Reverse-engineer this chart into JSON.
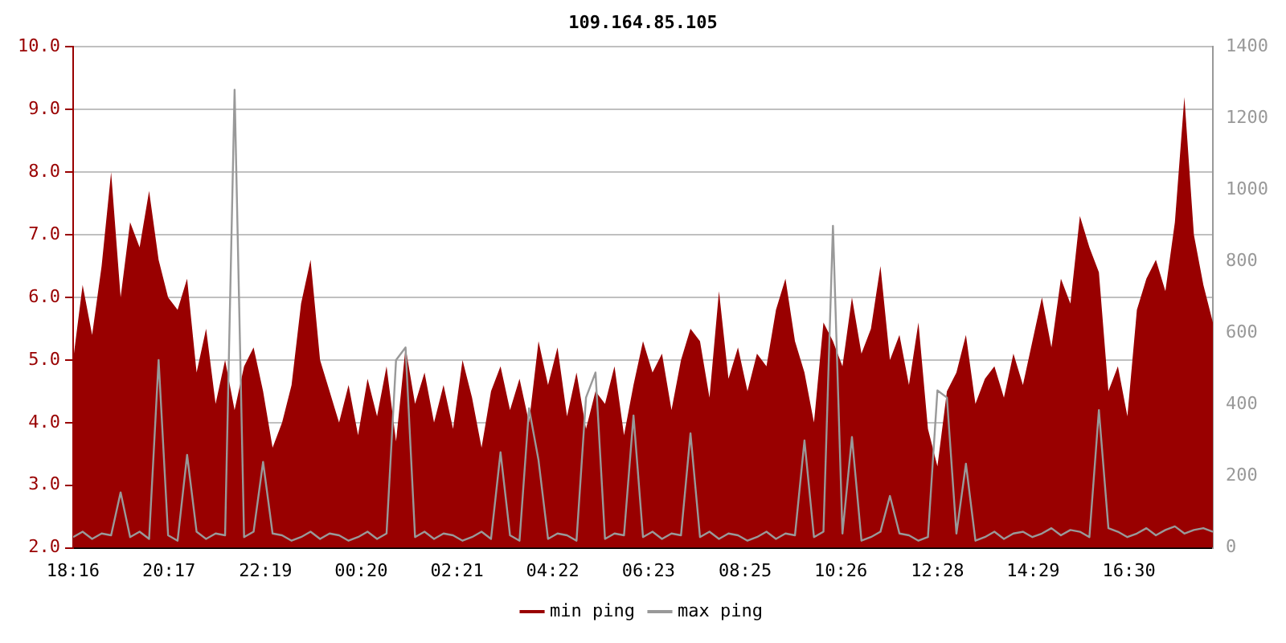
{
  "chart_data": {
    "type": "area",
    "title": "109.164.85.105",
    "x": [
      "--01-01T18:16",
      "--01-01T18:28",
      "--01-01T18:40",
      "--01-01T18:52",
      "--01-01T19:04",
      "--01-01T19:16",
      "--01-01T19:28",
      "--01-01T19:40",
      "--01-01T19:52",
      "--01-01T20:04",
      "--01-01T20:16",
      "--01-01T20:28",
      "--01-01T20:40",
      "--01-01T20:52",
      "--01-01T21:04",
      "--01-01T21:16",
      "--01-01T21:28",
      "--01-01T21:40",
      "--01-01T21:52",
      "--01-01T22:04",
      "--01-01T22:16",
      "--01-01T22:28",
      "--01-01T22:40",
      "--01-01T22:52",
      "--01-01T23:04",
      "--01-01T23:16",
      "--01-01T23:28",
      "--01-01T23:40",
      "--01-01T23:52",
      "--01-02T00:04",
      "--01-02T00:16",
      "--01-02T00:28",
      "--01-02T00:40",
      "--01-02T00:52",
      "--01-02T01:04",
      "--01-02T01:16",
      "--01-02T01:28",
      "--01-02T01:40",
      "--01-02T01:52",
      "--01-02T02:04",
      "--01-02T02:16",
      "--01-02T02:28",
      "--01-02T02:40",
      "--01-02T02:52",
      "--01-02T03:04",
      "--01-02T03:16",
      "--01-02T03:28",
      "--01-02T03:40",
      "--01-02T03:52",
      "--01-02T04:04",
      "--01-02T04:16",
      "--01-02T04:28",
      "--01-02T04:40",
      "--01-02T04:52",
      "--01-02T05:04",
      "--01-02T05:16",
      "--01-02T05:28",
      "--01-02T05:40",
      "--01-02T05:52",
      "--01-02T06:04",
      "--01-02T06:16",
      "--01-02T06:28",
      "--01-02T06:40",
      "--01-02T06:52",
      "--01-02T07:04",
      "--01-02T07:16",
      "--01-02T07:28",
      "--01-02T07:40",
      "--01-02T07:52",
      "--01-02T08:04",
      "--01-02T08:16",
      "--01-02T08:28",
      "--01-02T08:40",
      "--01-02T08:52",
      "--01-02T09:04",
      "--01-02T09:16",
      "--01-02T09:28",
      "--01-02T09:40",
      "--01-02T09:52",
      "--01-02T10:04",
      "--01-02T10:16",
      "--01-02T10:28",
      "--01-02T10:40",
      "--01-02T10:52",
      "--01-02T11:04",
      "--01-02T11:16",
      "--01-02T11:28",
      "--01-02T11:40",
      "--01-02T11:52",
      "--01-02T12:04",
      "--01-02T12:16",
      "--01-02T12:28",
      "--01-02T12:40",
      "--01-02T12:52",
      "--01-02T13:04",
      "--01-02T13:16",
      "--01-02T13:28",
      "--01-02T13:40",
      "--01-02T13:52",
      "--01-02T14:04",
      "--01-02T14:16",
      "--01-02T14:28",
      "--01-02T14:40",
      "--01-02T14:52",
      "--01-02T15:04",
      "--01-02T15:16",
      "--01-02T15:28",
      "--01-02T15:40",
      "--01-02T15:52",
      "--01-02T16:04",
      "--01-02T16:16",
      "--01-02T16:28",
      "--01-02T16:40",
      "--01-02T16:52",
      "--01-02T17:04",
      "--01-02T17:16",
      "--01-02T17:28",
      "--01-02T17:40",
      "--01-02T17:52",
      "--01-02T18:04",
      "--01-02T18:16"
    ],
    "series": [
      {
        "name": "min ping",
        "type": "area",
        "color": "#990000",
        "values": [
          5.0,
          6.2,
          5.4,
          6.5,
          8.0,
          6.0,
          7.2,
          6.8,
          7.7,
          6.6,
          6.0,
          5.8,
          6.3,
          4.8,
          5.5,
          4.3,
          5.0,
          4.2,
          4.9,
          5.2,
          4.5,
          3.6,
          4.0,
          4.6,
          5.9,
          6.6,
          5.0,
          4.5,
          4.0,
          4.6,
          3.8,
          4.7,
          4.1,
          4.9,
          3.7,
          5.2,
          4.3,
          4.8,
          4.0,
          4.6,
          3.9,
          5.0,
          4.4,
          3.6,
          4.5,
          4.9,
          4.2,
          4.7,
          4.0,
          5.3,
          4.6,
          5.2,
          4.1,
          4.8,
          3.9,
          4.5,
          4.3,
          4.9,
          3.8,
          4.6,
          5.3,
          4.8,
          5.1,
          4.2,
          5.0,
          5.5,
          5.3,
          4.4,
          6.1,
          4.7,
          5.2,
          4.5,
          5.1,
          4.9,
          5.8,
          6.3,
          5.3,
          4.8,
          4.0,
          5.6,
          5.3,
          4.9,
          6.0,
          5.1,
          5.5,
          6.5,
          5.0,
          5.4,
          4.6,
          5.6,
          3.9,
          3.3,
          4.5,
          4.8,
          5.4,
          4.3,
          4.7,
          4.9,
          4.4,
          5.1,
          4.6,
          5.3,
          6.0,
          5.2,
          6.3,
          5.9,
          7.3,
          6.8,
          6.4,
          4.5,
          4.9,
          4.1,
          5.8,
          6.3,
          6.6,
          6.1,
          7.2,
          9.2,
          7.0,
          6.2,
          5.6
        ]
      },
      {
        "name": "max ping",
        "type": "line",
        "axis": "y2",
        "color": "#999999",
        "values": [
          30,
          45,
          25,
          40,
          35,
          155,
          30,
          45,
          25,
          525,
          35,
          20,
          260,
          45,
          25,
          40,
          35,
          1280,
          30,
          45,
          240,
          40,
          35,
          20,
          30,
          45,
          25,
          40,
          35,
          20,
          30,
          45,
          25,
          40,
          525,
          560,
          30,
          45,
          25,
          40,
          35,
          20,
          30,
          45,
          25,
          267,
          35,
          20,
          390,
          245,
          25,
          40,
          35,
          20,
          420,
          490,
          25,
          40,
          35,
          370,
          30,
          45,
          25,
          40,
          35,
          320,
          30,
          45,
          25,
          40,
          35,
          20,
          30,
          45,
          25,
          40,
          35,
          300,
          30,
          45,
          900,
          40,
          310,
          20,
          30,
          45,
          145,
          40,
          35,
          20,
          30,
          440,
          420,
          40,
          235,
          20,
          30,
          45,
          25,
          40,
          45,
          30,
          40,
          55,
          35,
          50,
          45,
          30,
          385,
          55,
          45,
          30,
          40,
          55,
          35,
          50,
          60,
          40,
          50,
          55,
          45
        ]
      }
    ],
    "xlim": [
      "--01-01T18:16",
      "--01-02T18:16"
    ],
    "xticks": [
      {
        "value": "--01-01T18:16",
        "label": "18:16"
      },
      {
        "value": "--01-01T20:17",
        "label": "20:17"
      },
      {
        "value": "--01-01T22:19",
        "label": "22:19"
      },
      {
        "value": "--01-02T00:20",
        "label": "00:20"
      },
      {
        "value": "--01-02T02:21",
        "label": "02:21"
      },
      {
        "value": "--01-02T04:22",
        "label": "04:22"
      },
      {
        "value": "--01-02T06:23",
        "label": "06:23"
      },
      {
        "value": "--01-02T08:25",
        "label": "08:25"
      },
      {
        "value": "--01-02T10:26",
        "label": "10:26"
      },
      {
        "value": "--01-02T12:28",
        "label": "12:28"
      },
      {
        "value": "--01-02T14:29",
        "label": "14:29"
      },
      {
        "value": "--01-02T16:30",
        "label": "16:30"
      }
    ],
    "ylim": [
      2,
      10
    ],
    "yticks": [
      {
        "value": 2,
        "label": "2.0"
      },
      {
        "value": 3,
        "label": "3.0"
      },
      {
        "value": 4,
        "label": "4.0"
      },
      {
        "value": 5,
        "label": "5.0"
      },
      {
        "value": 6,
        "label": "6.0"
      },
      {
        "value": 7,
        "label": "7.0"
      },
      {
        "value": 8,
        "label": "8.0"
      },
      {
        "value": 9,
        "label": "9.0"
      },
      {
        "value": 10,
        "label": "10.0"
      }
    ],
    "y2lim": [
      0,
      1400
    ],
    "y2ticks": [
      0,
      200,
      400,
      600,
      800,
      1000,
      1200,
      1400
    ],
    "grid": "y",
    "legend": "bottom",
    "marker": "none",
    "line_style": "solid"
  }
}
